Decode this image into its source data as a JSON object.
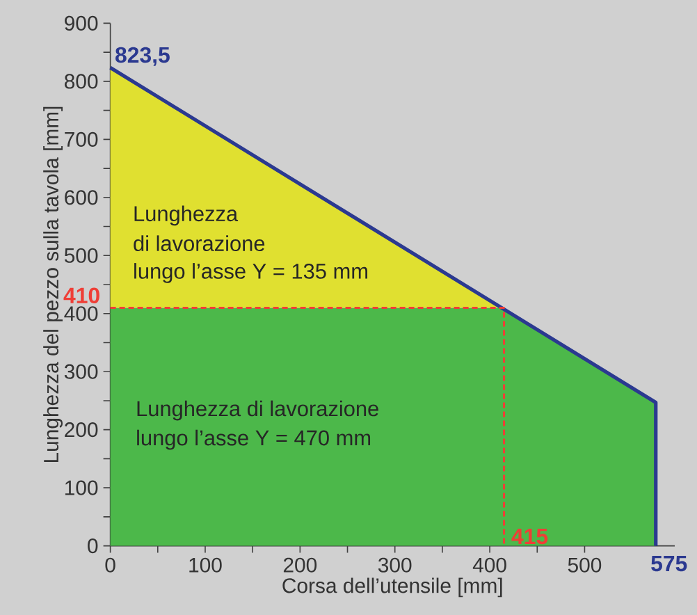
{
  "chart_data": {
    "type": "area",
    "stacked": true,
    "xlabel": "Corsa dell’utensile [mm]",
    "ylabel": "Lunghezza del pezzo sulla tavola [mm]",
    "xlim": [
      0,
      595
    ],
    "xticks": [
      0,
      100,
      200,
      300,
      400,
      500
    ],
    "ylim": [
      0,
      900
    ],
    "yticks": [
      0,
      100,
      200,
      300,
      400,
      500,
      600,
      700,
      800,
      900
    ],
    "series": [
      {
        "color": "#4cb84a",
        "x": [
          0,
          415,
          575
        ],
        "values": [
          410,
          410,
          247
        ]
      },
      {
        "color": "#e0e030",
        "x": [
          0,
          415,
          575
        ],
        "values": [
          413.5,
          0,
          0
        ]
      },
      {
        "type": "line",
        "color": "#2b3990",
        "x": [
          0,
          575,
          575
        ],
        "values": [
          823.5,
          247,
          0
        ]
      },
      {
        "type": "line",
        "color": "#ef3e36",
        "line_style": "dashed",
        "x": [
          0,
          415,
          415
        ],
        "values": [
          410,
          410,
          0
        ]
      }
    ],
    "annotations": [
      {
        "text": "823,5",
        "x": 0,
        "y": 823.5
      },
      {
        "text": "410",
        "x": 0,
        "y": 410
      },
      {
        "text": "415",
        "x": 415,
        "y": 0
      },
      {
        "text": "575",
        "x": 575,
        "y": 0
      },
      "Lunghezza",
      "di lavorazione",
      "lungo l’asse Y = 135 mm",
      "Lunghezza di lavorazione",
      "lungo l’asse Y = 470 mm"
    ]
  }
}
